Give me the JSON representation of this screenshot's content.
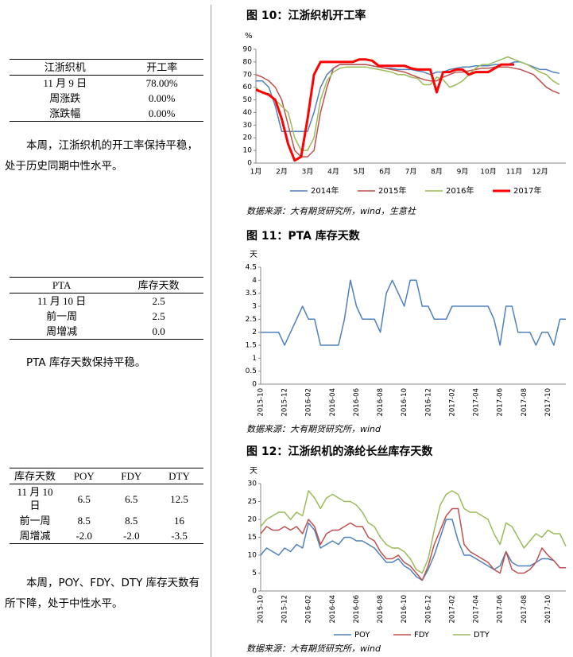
{
  "tables": [
    {
      "header": [
        "江浙织机",
        "开工率"
      ],
      "rows": [
        [
          "11 月 9 日",
          "78.00%"
        ],
        [
          "周涨跌",
          "0.00%"
        ],
        [
          "涨跌幅",
          "0.00%"
        ]
      ]
    },
    {
      "header": [
        "PTA",
        "库存天数"
      ],
      "rows": [
        [
          "11 月 10 日",
          "2.5"
        ],
        [
          "前一周",
          "2.5"
        ],
        [
          "周增减",
          "0.0"
        ]
      ]
    },
    {
      "header": [
        "库存天数",
        "POY",
        "FDY",
        "DTY"
      ],
      "rows": [
        [
          "11 月 10 日",
          "6.5",
          "6.5",
          "12.5"
        ],
        [
          "前一周",
          "8.5",
          "8.5",
          "16"
        ],
        [
          "周增减",
          "-2.0",
          "-2.0",
          "-3.5"
        ]
      ]
    }
  ],
  "paragraphs": [
    "本周，江浙织机的开工率保持平稳，处于历史同期中性水平。",
    "PTA 库存天数保持平稳。",
    "本周，POY、FDY、DTY 库存天数有所下降，处于中性水平。"
  ],
  "chart_data": [
    {
      "type": "line",
      "title": "图 10：江浙织机开工率",
      "y_unit": "%",
      "source": "数据来源：大有期货研究所，wind，生意社",
      "categories": [
        "1月",
        null,
        null,
        null,
        "2月",
        null,
        null,
        null,
        "3月",
        null,
        null,
        null,
        "4月",
        null,
        null,
        null,
        "5月",
        null,
        null,
        null,
        "6月",
        null,
        null,
        null,
        "7月",
        null,
        null,
        null,
        "8月",
        null,
        null,
        null,
        "9月",
        null,
        null,
        null,
        "10月",
        null,
        null,
        null,
        "11月",
        null,
        null,
        null,
        "12月",
        null,
        null,
        null
      ],
      "ylim": [
        0,
        90
      ],
      "yticks": [
        0,
        10,
        20,
        30,
        40,
        50,
        60,
        70,
        80,
        90
      ],
      "grid": false,
      "series": [
        {
          "name": "2014年",
          "color": "#4f81bd",
          "width": 1.5,
          "values": [
            65,
            65,
            60,
            45,
            25,
            25,
            25,
            25,
            25,
            40,
            60,
            70,
            75,
            78,
            78,
            78,
            78,
            78,
            77,
            76,
            75,
            75,
            74,
            74,
            74,
            73,
            72,
            70,
            72,
            72,
            74,
            75,
            76,
            76,
            77,
            77,
            77,
            78,
            78,
            78,
            80,
            80,
            78,
            76,
            74,
            74,
            72,
            71
          ]
        },
        {
          "name": "2015年",
          "color": "#c0504d",
          "width": 1.5,
          "values": [
            70,
            68,
            65,
            60,
            50,
            30,
            10,
            5,
            5,
            10,
            40,
            60,
            75,
            78,
            78,
            78,
            78,
            78,
            77,
            76,
            75,
            74,
            73,
            72,
            70,
            68,
            66,
            65,
            65,
            68,
            70,
            72,
            72,
            73,
            74,
            75,
            75,
            76,
            76,
            76,
            75,
            74,
            72,
            70,
            65,
            60,
            57,
            55
          ]
        },
        {
          "name": "2016年",
          "color": "#9bbb59",
          "width": 1.5,
          "values": [
            60,
            55,
            55,
            50,
            45,
            40,
            20,
            10,
            10,
            20,
            50,
            65,
            72,
            75,
            76,
            76,
            76,
            76,
            75,
            74,
            73,
            72,
            70,
            70,
            68,
            67,
            62,
            62,
            68,
            66,
            60,
            62,
            65,
            70,
            75,
            78,
            78,
            80,
            82,
            84,
            82,
            80,
            78,
            75,
            72,
            70,
            65,
            62
          ]
        },
        {
          "name": "2017年",
          "color": "#ff0000",
          "width": 3,
          "values": [
            58,
            56,
            54,
            50,
            35,
            15,
            2,
            5,
            35,
            70,
            80,
            80,
            80,
            80,
            80,
            80,
            82,
            82,
            81,
            77,
            77,
            77,
            77,
            77,
            75,
            74,
            74,
            74,
            56,
            72,
            72,
            74,
            74,
            70,
            72,
            72,
            72,
            75,
            78,
            78,
            78,
            null,
            null,
            null,
            null,
            null,
            null,
            null
          ]
        }
      ]
    },
    {
      "type": "line",
      "title": "图 11：PTA 库存天数",
      "y_unit": "天",
      "source": "数据来源：大有期货研究所，wind",
      "color": "#4f81bd",
      "categories": [
        "2015-10",
        null,
        null,
        null,
        "2015-12",
        null,
        null,
        null,
        "2016-02",
        null,
        null,
        null,
        "2016-04",
        null,
        null,
        null,
        "2016-06",
        null,
        null,
        null,
        "2016-08",
        null,
        null,
        null,
        "2016-10",
        null,
        null,
        null,
        "2016-12",
        null,
        null,
        null,
        "2017-02",
        null,
        null,
        null,
        "2017-04",
        null,
        null,
        null,
        "2017-06",
        null,
        null,
        null,
        "2017-08",
        null,
        null,
        null,
        "2017-10",
        null,
        null,
        null
      ],
      "ylim": [
        0,
        4.5
      ],
      "yticks": [
        0,
        0.5,
        1,
        1.5,
        2,
        2.5,
        3,
        3.5,
        4,
        4.5
      ],
      "grid": false,
      "values": [
        2,
        2,
        2,
        2,
        1.5,
        2,
        2.5,
        3,
        2.5,
        2.5,
        1.5,
        1.5,
        1.5,
        1.5,
        2.5,
        4,
        3,
        2.5,
        2.5,
        2.5,
        2,
        3.5,
        4,
        3.5,
        3,
        4,
        4,
        3,
        3,
        2.5,
        2.5,
        2.5,
        3,
        3,
        3,
        3,
        3,
        3,
        3,
        2.5,
        1.5,
        3,
        3,
        2,
        2,
        2,
        1.5,
        2,
        2,
        1.5,
        2.5,
        2.5
      ]
    },
    {
      "type": "line",
      "title": "图 12：江浙织机的涤纶长丝库存天数",
      "y_unit": "天",
      "source": "数据来源：大有期货研究所，wind",
      "categories": [
        "2015-10",
        null,
        null,
        null,
        "2015-12",
        null,
        null,
        null,
        "2016-02",
        null,
        null,
        null,
        "2016-04",
        null,
        null,
        null,
        "2016-06",
        null,
        null,
        null,
        "2016-08",
        null,
        null,
        null,
        "2016-10",
        null,
        null,
        null,
        "2016-12",
        null,
        null,
        null,
        "2017-02",
        null,
        null,
        null,
        "2017-04",
        null,
        null,
        null,
        "2017-06",
        null,
        null,
        null,
        "2017-08",
        null,
        null,
        null,
        "2017-10",
        null,
        null,
        null
      ],
      "ylim": [
        0,
        30
      ],
      "yticks": [
        0,
        5,
        10,
        15,
        20,
        25,
        30
      ],
      "grid": false,
      "series": [
        {
          "name": "POY",
          "color": "#4f81bd",
          "width": 1.5,
          "values": [
            10,
            12,
            11,
            10,
            12,
            11,
            13,
            12,
            19,
            17,
            12,
            13,
            14,
            13,
            15,
            15,
            14,
            14,
            13,
            12,
            10,
            8,
            8,
            9,
            7,
            6,
            4,
            3,
            6,
            10,
            15,
            20,
            20,
            14,
            10,
            10,
            9,
            8,
            7,
            6,
            7,
            11,
            8,
            7,
            7,
            7,
            8,
            9,
            9,
            8.5,
            6.5,
            6.5
          ]
        },
        {
          "name": "FDY",
          "color": "#c0504d",
          "width": 1.5,
          "values": [
            16,
            18,
            17,
            17,
            18,
            17,
            18,
            16,
            20,
            18,
            13,
            16,
            17,
            17,
            18,
            19,
            18,
            18,
            15,
            14,
            11,
            9,
            9,
            10,
            8,
            7,
            5,
            3,
            7,
            13,
            17,
            21,
            23,
            23,
            13,
            11,
            10,
            9,
            8,
            6,
            5,
            11,
            6,
            5,
            5,
            6,
            8,
            12,
            10,
            8.5,
            6.5,
            6.5
          ]
        },
        {
          "name": "DTY",
          "color": "#9bbb59",
          "width": 1.5,
          "values": [
            18,
            20,
            21,
            22,
            22,
            20,
            22,
            21,
            28,
            26,
            23,
            26,
            27,
            26,
            25,
            25,
            24,
            22,
            19,
            18,
            15,
            13,
            12,
            12,
            11,
            9,
            6,
            5,
            9,
            17,
            24,
            27,
            28,
            27,
            23,
            22,
            22,
            21,
            20,
            16,
            13,
            19,
            18,
            15,
            12,
            14,
            16,
            15,
            17,
            16,
            16,
            12.5
          ]
        }
      ]
    }
  ]
}
